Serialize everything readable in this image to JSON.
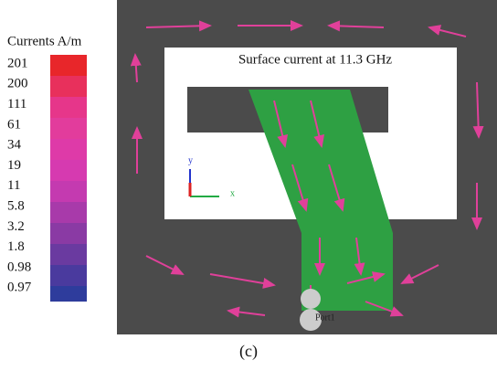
{
  "legend": {
    "title": "Currents A/m",
    "labels": [
      "201",
      "200",
      "111",
      "61",
      "34",
      "19",
      "11",
      "5.8",
      "3.2",
      "1.8",
      "0.98",
      "0.97"
    ]
  },
  "plot": {
    "title": "Surface current at 11.3 GHz",
    "axis_y": "y",
    "axis_x": "x",
    "port": "Port1"
  },
  "caption": "(c)"
}
